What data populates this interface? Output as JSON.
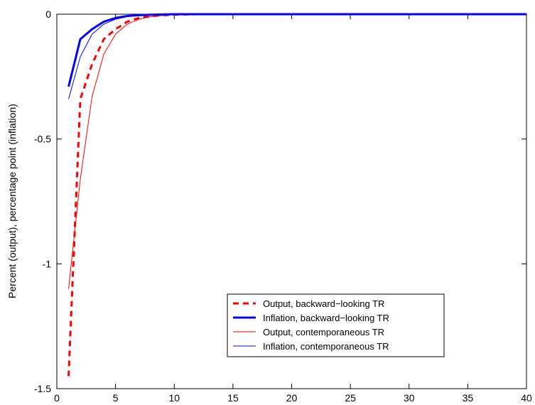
{
  "chart_data": {
    "type": "line",
    "title": "",
    "xlabel": "",
    "ylabel": "Percent (output), percentage point (inflation)",
    "xlim": [
      0,
      40
    ],
    "ylim": [
      -1.5,
      0
    ],
    "xticks": [
      0,
      5,
      10,
      15,
      20,
      25,
      30,
      35,
      40
    ],
    "yticks": [
      -1.5,
      -1,
      -0.5,
      0
    ],
    "xtick_labels": [
      "0",
      "5",
      "10",
      "15",
      "20",
      "25",
      "30",
      "35",
      "40"
    ],
    "ytick_labels": [
      "-1.5",
      "-1",
      "-0.5",
      "0"
    ],
    "grid": false,
    "legend_position": "lower-right",
    "x": [
      1,
      2,
      3,
      4,
      5,
      6,
      7,
      8,
      9,
      10,
      11,
      12,
      13,
      14,
      15,
      16,
      17,
      18,
      19,
      20,
      21,
      22,
      23,
      24,
      25,
      26,
      27,
      28,
      29,
      30,
      31,
      32,
      33,
      34,
      35,
      36,
      37,
      38,
      39,
      40
    ],
    "series": [
      {
        "name": "Output, backward−looking TR",
        "color": "#ff0000",
        "style": "dashed",
        "weight": "thick",
        "values": [
          -1.45,
          -0.34,
          -0.2,
          -0.1,
          -0.06,
          -0.03,
          -0.015,
          -0.008,
          -0.004,
          -0.002,
          -0.001,
          0,
          0,
          0,
          0,
          0,
          0,
          0,
          0,
          0,
          0,
          0,
          0,
          0,
          0,
          0,
          0,
          0,
          0,
          0,
          0,
          0,
          0,
          0,
          0,
          0,
          0,
          0,
          0,
          0
        ]
      },
      {
        "name": "Inflation, backward−looking TR",
        "color": "#0000ff",
        "style": "solid",
        "weight": "thick",
        "values": [
          -0.29,
          -0.1,
          -0.06,
          -0.03,
          -0.015,
          -0.007,
          -0.004,
          -0.002,
          -0.001,
          0,
          0,
          0,
          0,
          0,
          0,
          0,
          0,
          0,
          0,
          0,
          0,
          0,
          0,
          0,
          0,
          0,
          0,
          0,
          0,
          0,
          0,
          0,
          0,
          0,
          0,
          0,
          0,
          0,
          0,
          0
        ]
      },
      {
        "name": "Output, contemporaneous TR",
        "color": "#ff0000",
        "style": "solid",
        "weight": "thin",
        "values": [
          -1.1,
          -0.66,
          -0.33,
          -0.16,
          -0.08,
          -0.04,
          -0.02,
          -0.01,
          -0.005,
          -0.002,
          -0.001,
          0,
          0,
          0,
          0,
          0,
          0,
          0,
          0,
          0,
          0,
          0,
          0,
          0,
          0,
          0,
          0,
          0,
          0,
          0,
          0,
          0,
          0,
          0,
          0,
          0,
          0,
          0,
          0,
          0
        ]
      },
      {
        "name": "Inflation, contemporaneous TR",
        "color": "#0000ff",
        "style": "solid",
        "weight": "thin",
        "values": [
          -0.34,
          -0.17,
          -0.08,
          -0.04,
          -0.02,
          -0.01,
          -0.005,
          -0.002,
          -0.001,
          0,
          0,
          0,
          0,
          0,
          0,
          0,
          0,
          0,
          0,
          0,
          0,
          0,
          0,
          0,
          0,
          0,
          0,
          0,
          0,
          0,
          0,
          0,
          0,
          0,
          0,
          0,
          0,
          0,
          0,
          0
        ]
      }
    ]
  }
}
